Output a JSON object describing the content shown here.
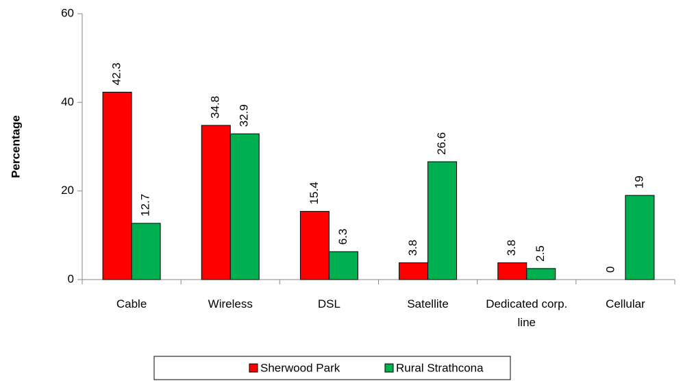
{
  "chart_data": {
    "type": "bar",
    "ylabel": "Percentage",
    "categories": [
      "Cable",
      "Wireless",
      "DSL",
      "Satellite",
      "Dedicated corp. line",
      "Cellular"
    ],
    "series": [
      {
        "name": "Sherwood Park",
        "color": "#ff0000",
        "values": [
          42.3,
          34.8,
          15.4,
          3.8,
          3.8,
          0
        ]
      },
      {
        "name": "Rural Strathcona",
        "color": "#00b050",
        "values": [
          12.7,
          32.9,
          6.3,
          26.6,
          2.5,
          19
        ]
      }
    ],
    "ylim": [
      0,
      60
    ],
    "yticks": [
      0,
      20,
      40,
      60
    ],
    "grid": false,
    "legend": "bottom"
  }
}
